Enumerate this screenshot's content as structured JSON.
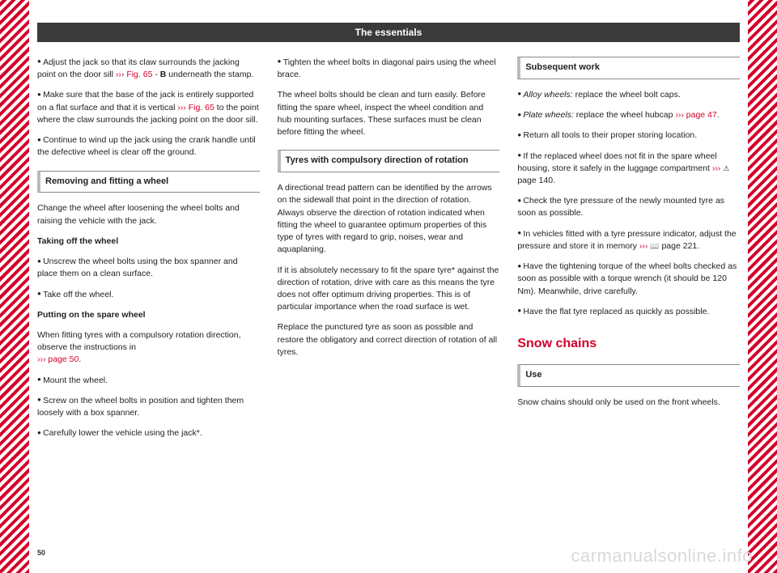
{
  "header": {
    "title": "The essentials"
  },
  "col1": {
    "p1_a": "Adjust the jack so that its claw surrounds the jacking point on the door sill ",
    "p1_ref": "››› Fig. 65",
    "p1_b": " - ",
    "p1_bold": "B",
    "p1_c": " underneath the stamp.",
    "p2_a": "Make sure that the base of the jack is entirely supported on a flat surface and that it is vertical ",
    "p2_ref": "››› Fig. 65",
    "p2_b": " to the point where the claw surrounds the jacking point on the door sill.",
    "p3": "Continue to wind up the jack using the crank handle until the defective wheel is clear off the ground.",
    "sec1": "Removing and fitting a wheel",
    "p4": "Change the wheel after loosening the wheel bolts and raising the vehicle with the jack.",
    "sub1": "Taking off the wheel",
    "p5": "Unscrew the wheel bolts using the box spanner and place them on a clean surface.",
    "p6": "Take off the wheel.",
    "sub2": "Putting on the spare wheel",
    "p7_a": "When fitting tyres with a compulsory rotation direction, observe the instructions in ",
    "p7_ref": "››› page 50",
    "p7_b": ".",
    "p8": "Mount the wheel.",
    "p9": "Screw on the wheel bolts in position and tighten them loosely with a box spanner.",
    "p10": "Carefully lower the vehicle using the jack*."
  },
  "col2": {
    "p1": "Tighten the wheel bolts in diagonal pairs using the wheel brace.",
    "p2": "The wheel bolts should be clean and turn easily. Before fitting the spare wheel, inspect the wheel condition and hub mounting surfaces. These surfaces must be clean before fitting the wheel.",
    "sec1": "Tyres with compulsory direction of rotation",
    "p3": "A directional tread pattern can be identified by the arrows on the sidewall that point in the direction of rotation. Always observe the direction of rotation indicated when fitting the wheel to guarantee optimum properties of this type of tyres with regard to grip, noises, wear and aquaplaning.",
    "p4": "If it is absolutely necessary to fit the spare tyre* against the direction of rotation, drive with care as this means the tyre does not offer optimum driving properties. This is of particular importance when the road surface is wet.",
    "p5": "Replace the punctured tyre as soon as possible and restore the obligatory and correct direction of rotation of all tyres."
  },
  "col3": {
    "sec1": "Subsequent work",
    "p1_a": "Alloy wheels:",
    "p1_b": " replace the wheel bolt caps.",
    "p2_a": "Plate wheels:",
    "p2_b": " replace the wheel hubcap ",
    "p2_ref": "››› page 47",
    "p2_c": ".",
    "p3": "Return all tools to their proper storing location.",
    "p4_a": "If the replaced wheel does not fit in the spare wheel housing, store it safely in the luggage compartment ",
    "p4_ref": "›››",
    "p4_b": " page 140.",
    "p5": "Check the tyre pressure of the newly mounted tyre as soon as possible.",
    "p6_a": "In vehicles fitted with a tyre pressure indicator, adjust the pressure and store it in memory ",
    "p6_ref": "›››",
    "p6_b": " page 221.",
    "p7": "Have the tightening torque of the wheel bolts checked as soon as possible with a torque wrench (it should be 120 Nm). Meanwhile, drive carefully.",
    "p8": "Have the flat tyre replaced as quickly as possible.",
    "h2": "Snow chains",
    "sec2": "Use",
    "p9": "Snow chains should only be used on the front wheels."
  },
  "footer": {
    "page": "50",
    "watermark": "carmanualsonline.info"
  }
}
